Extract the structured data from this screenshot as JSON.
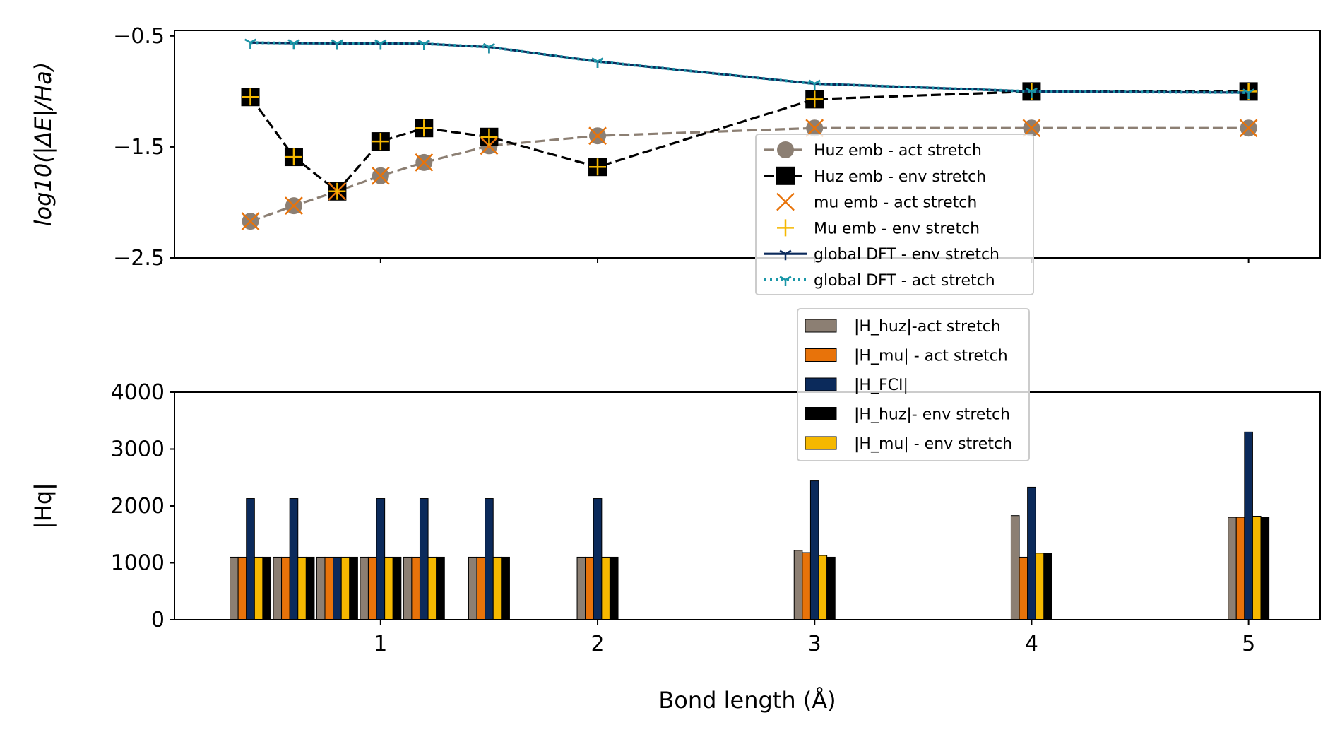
{
  "chart_data": [
    {
      "type": "line",
      "ylabel": "log10(|ΔE|/Ha)",
      "ylim": [
        -2.5,
        -0.45
      ],
      "xlim": [
        0.05,
        5.33
      ],
      "yticks": [
        -0.5,
        -1.5,
        -2.5
      ],
      "ytick_labels": [
        "−0.5",
        "−1.5",
        "−2.5"
      ],
      "xticks": [
        1,
        2,
        3,
        4,
        5
      ],
      "legend_placement": "center-right",
      "x": [
        0.4,
        0.6,
        0.8,
        1.0,
        1.2,
        1.5,
        2.0,
        3.0,
        4.0,
        5.0
      ],
      "series": [
        {
          "name": "Huz emb - act stretch",
          "style": "dashed",
          "marker": "circle",
          "color": "#8c7f73",
          "values": [
            -2.17,
            -2.03,
            -1.9,
            -1.76,
            -1.64,
            -1.49,
            -1.4,
            -1.33,
            -1.33,
            -1.33
          ]
        },
        {
          "name": "Huz emb - env stretch",
          "style": "dashed",
          "marker": "square",
          "color": "#000000",
          "values": [
            -1.05,
            -1.59,
            -1.9,
            -1.45,
            -1.33,
            -1.41,
            -1.68,
            -1.07,
            -1.0,
            -1.0
          ]
        },
        {
          "name": "mu emb - act stretch",
          "style": "none",
          "marker": "x",
          "color": "#e8730a",
          "values": [
            -2.17,
            -2.03,
            -1.9,
            -1.76,
            -1.64,
            -1.49,
            -1.4,
            -1.33,
            -1.33,
            -1.33
          ]
        },
        {
          "name": "Mu emb - env stretch",
          "style": "none",
          "marker": "plus",
          "color": "#f5b800",
          "values": [
            -1.05,
            -1.59,
            -1.9,
            -1.45,
            -1.33,
            -1.41,
            -1.68,
            -1.07,
            -1.0,
            -1.0
          ]
        },
        {
          "name": "global DFT - env stretch",
          "style": "solid",
          "marker": "tri",
          "color": "#0b2a5b",
          "values": [
            -0.56,
            -0.565,
            -0.567,
            -0.567,
            -0.57,
            -0.6,
            -0.73,
            -0.93,
            -1.0,
            -1.01
          ]
        },
        {
          "name": "global DFT - act stretch",
          "style": "dotted",
          "marker": "tri",
          "color": "#1a97a8",
          "values": [
            -0.56,
            -0.565,
            -0.567,
            -0.567,
            -0.57,
            -0.6,
            -0.73,
            -0.93,
            -1.0,
            -1.01
          ]
        }
      ]
    },
    {
      "type": "bar",
      "ylabel": "|Hq|",
      "xlabel": "Bond length (Å)",
      "ylim": [
        0,
        4000
      ],
      "xlim": [
        0.05,
        5.33
      ],
      "yticks": [
        0,
        1000,
        2000,
        3000,
        4000
      ],
      "ytick_labels": [
        "0",
        "1000",
        "2000",
        "3000",
        "4000"
      ],
      "xticks": [
        1,
        2,
        3,
        4,
        5
      ],
      "xtick_labels": [
        "1",
        "2",
        "3",
        "4",
        "5"
      ],
      "legend_placement": "upper-center",
      "x": [
        0.4,
        0.6,
        0.8,
        1.0,
        1.2,
        1.5,
        2.0,
        3.0,
        4.0,
        5.0
      ],
      "series": [
        {
          "name": "|H_huz|-act stretch",
          "color": "#8c7f73",
          "values": [
            1100,
            1100,
            1100,
            1100,
            1100,
            1100,
            1100,
            1220,
            1830,
            1800
          ]
        },
        {
          "name": "|H_mu| - act stretch",
          "color": "#e8730a",
          "values": [
            1100,
            1100,
            1100,
            1100,
            1100,
            1100,
            1100,
            1180,
            1100,
            1800
          ]
        },
        {
          "name": "|H_FCI|",
          "color": "#0b2a5b",
          "values": [
            2130,
            2130,
            1100,
            2130,
            2130,
            2130,
            2130,
            2440,
            2330,
            3300
          ]
        },
        {
          "name": "|H_mu| - env stretch",
          "color": "#f5b800",
          "values": [
            1100,
            1100,
            1100,
            1100,
            1100,
            1100,
            1100,
            1130,
            1170,
            1820
          ]
        },
        {
          "name": "|H_huz|- env stretch",
          "color": "#000000",
          "values": [
            1100,
            1100,
            1100,
            1100,
            1100,
            1100,
            1100,
            1100,
            1170,
            1800
          ]
        }
      ],
      "legend_order": [
        0,
        1,
        2,
        4,
        3
      ]
    }
  ]
}
